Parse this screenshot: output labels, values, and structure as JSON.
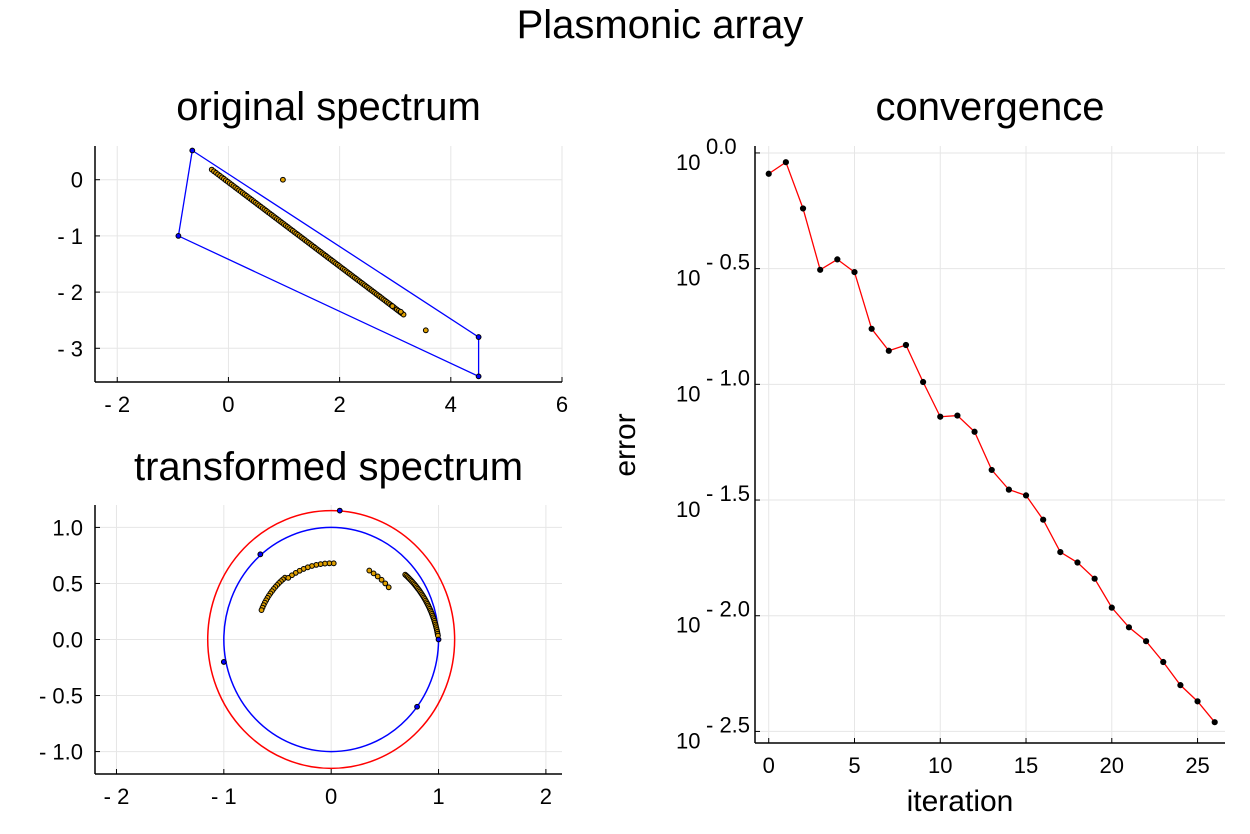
{
  "figure": {
    "title": "Plasmonic array"
  },
  "chart_data": [
    {
      "id": "original",
      "type": "scatter",
      "title": "original spectrum",
      "xlabel": "",
      "ylabel": "",
      "xlim": [
        -2.4,
        6.0
      ],
      "ylim": [
        -3.6,
        0.6
      ],
      "xticks": [
        -2,
        0,
        2,
        4,
        6
      ],
      "xtick_labels": [
        "- 2",
        "0",
        "2",
        "4",
        "6"
      ],
      "yticks": [
        0,
        -1,
        -2,
        -3
      ],
      "ytick_labels": [
        "0",
        "- 1",
        "- 2",
        "- 3"
      ],
      "grid": true,
      "colors": {
        "hull": "#0000ff",
        "point_fill": "#e0a000",
        "vertex_fill": "#0000ff",
        "outline": "#000000"
      },
      "hull": [
        [
          -0.65,
          0.52
        ],
        [
          4.5,
          -2.8
        ],
        [
          4.5,
          -3.5
        ],
        [
          -0.9,
          -1.0
        ],
        [
          -0.65,
          0.52
        ]
      ],
      "hull_vertices": [
        [
          -0.65,
          0.52
        ],
        [
          4.5,
          -2.8
        ],
        [
          4.5,
          -3.5
        ],
        [
          -0.9,
          -1.0
        ]
      ],
      "line_cluster": {
        "from": [
          -0.3,
          0.18
        ],
        "to": [
          3.15,
          -2.4
        ],
        "count": 110
      },
      "extra_points": [
        [
          0.98,
          0.0
        ],
        [
          3.55,
          -2.68
        ],
        [
          3.1,
          -2.35
        ],
        [
          2.95,
          -2.25
        ]
      ]
    },
    {
      "id": "transformed",
      "type": "scatter",
      "title": "transformed spectrum",
      "xlabel": "",
      "ylabel": "",
      "xlim": [
        -2.2,
        2.15
      ],
      "ylim": [
        -1.2,
        1.2
      ],
      "xticks": [
        -2,
        -1,
        0,
        1,
        2
      ],
      "xtick_labels": [
        "- 2",
        "- 1",
        "0",
        "1",
        "2"
      ],
      "yticks": [
        1.0,
        0.5,
        0.0,
        -0.5,
        -1.0
      ],
      "ytick_labels": [
        "1.0",
        "0.5",
        "0.0",
        "- 0.5",
        "- 1.0"
      ],
      "grid": true,
      "colors": {
        "unit_circle": "#0000ff",
        "outer_circle": "#ff0000",
        "point_fill": "#e0a000",
        "vertex_fill": "#0000ff",
        "outline": "#000000"
      },
      "unit_circle_radius": 1.0,
      "outer_circle_radius": 1.15,
      "vertex_points": [
        [
          0.08,
          1.15
        ],
        [
          -0.66,
          0.76
        ],
        [
          -1.0,
          -0.2
        ],
        [
          0.8,
          -0.6
        ],
        [
          1.0,
          0.0
        ]
      ],
      "arc_points": [
        {
          "r": 0.7,
          "deg_from": 128,
          "deg_to": 158,
          "count": 16
        },
        {
          "r": 0.68,
          "deg_from": 88,
          "deg_to": 126,
          "count": 12
        },
        {
          "r": 0.71,
          "deg_from": 60,
          "deg_to": 41,
          "count": 6
        },
        {
          "r": 0.9,
          "deg_from": 40,
          "deg_to": 2,
          "count": 40
        }
      ]
    },
    {
      "id": "convergence",
      "type": "line",
      "title": "convergence",
      "xlabel": "iteration",
      "ylabel": "error",
      "yscale": "log10",
      "xlim": [
        -0.8,
        26.6
      ],
      "ylim_log10": [
        -2.55,
        0.03
      ],
      "xticks": [
        0,
        5,
        10,
        15,
        20,
        25
      ],
      "xtick_labels": [
        "0",
        "5",
        "10",
        "15",
        "20",
        "25"
      ],
      "yticks_log10": [
        0.0,
        -0.5,
        -1.0,
        -1.5,
        -2.0,
        -2.5
      ],
      "ytick_base": "10",
      "ytick_exponents": [
        "0.0",
        "- 0.5",
        "- 1.0",
        "- 1.5",
        "- 2.0",
        "- 2.5"
      ],
      "grid": true,
      "colors": {
        "line": "#ff0000",
        "marker": "#000000"
      },
      "x": [
        0,
        1,
        2,
        3,
        4,
        5,
        6,
        7,
        8,
        9,
        10,
        11,
        12,
        13,
        14,
        15,
        16,
        17,
        18,
        19,
        20,
        21,
        22,
        23,
        24,
        25,
        26
      ],
      "log10_values": [
        -0.09,
        -0.04,
        -0.24,
        -0.505,
        -0.46,
        -0.515,
        -0.76,
        -0.855,
        -0.83,
        -0.99,
        -1.14,
        -1.135,
        -1.205,
        -1.37,
        -1.455,
        -1.48,
        -1.585,
        -1.725,
        -1.77,
        -1.84,
        -1.965,
        -2.05,
        -2.11,
        -2.2,
        -2.3,
        -2.37,
        -2.46
      ]
    }
  ]
}
